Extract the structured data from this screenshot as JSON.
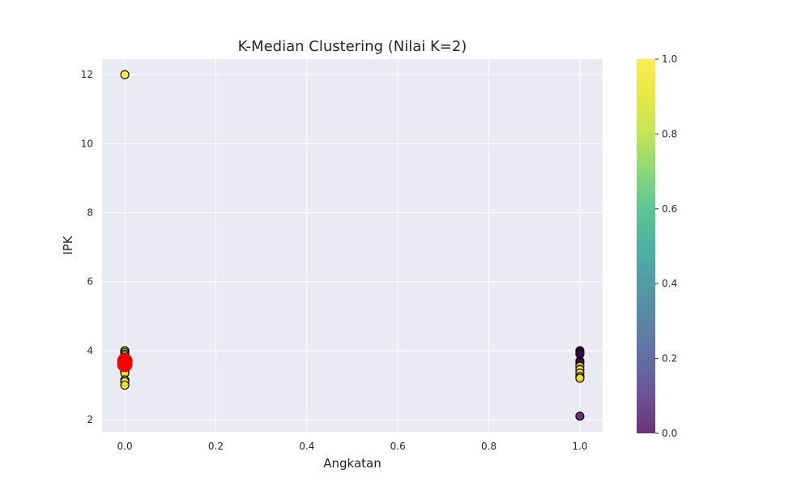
{
  "chart_data": {
    "type": "scatter",
    "title": "K-Median Clustering (Nilai K=2)",
    "xlabel": "Angkatan",
    "ylabel": "IPK",
    "xlim": [
      -0.05,
      1.05
    ],
    "ylim": [
      1.65,
      12.45
    ],
    "x_ticks": [
      "0.0",
      "0.2",
      "0.4",
      "0.6",
      "0.8",
      "1.0"
    ],
    "x_tick_values": [
      0,
      0.2,
      0.4,
      0.6,
      0.8,
      1.0
    ],
    "y_ticks": [
      "2",
      "4",
      "6",
      "8",
      "10",
      "12"
    ],
    "y_tick_values": [
      2,
      4,
      6,
      8,
      10,
      12
    ],
    "grid": true,
    "colormap": "viridis",
    "point_alpha": 0.8,
    "colorbar": {
      "ticks": [
        "0.0",
        "0.2",
        "0.4",
        "0.6",
        "0.8",
        "1.0"
      ],
      "tick_values": [
        0,
        0.2,
        0.4,
        0.6,
        0.8,
        1.0
      ],
      "range": [
        0,
        1
      ]
    },
    "points": [
      {
        "x": 0,
        "y": 12.0,
        "cluster": 1
      },
      {
        "x": 0,
        "y": 4.0,
        "cluster": 1
      },
      {
        "x": 0,
        "y": 3.95,
        "cluster": 1
      },
      {
        "x": 0,
        "y": 3.9,
        "cluster": 1
      },
      {
        "x": 0,
        "y": 3.85,
        "cluster": 1
      },
      {
        "x": 0,
        "y": 3.8,
        "cluster": 1
      },
      {
        "x": 0,
        "y": 3.75,
        "cluster": 1
      },
      {
        "x": 0,
        "y": 3.7,
        "cluster": 1
      },
      {
        "x": 0,
        "y": 3.65,
        "cluster": 1
      },
      {
        "x": 0,
        "y": 3.6,
        "cluster": 1
      },
      {
        "x": 0,
        "y": 3.55,
        "cluster": 1
      },
      {
        "x": 0,
        "y": 3.5,
        "cluster": 1
      },
      {
        "x": 0,
        "y": 3.4,
        "cluster": 1
      },
      {
        "x": 0,
        "y": 3.35,
        "cluster": 1
      },
      {
        "x": 0,
        "y": 3.15,
        "cluster": 1
      },
      {
        "x": 0,
        "y": 3.1,
        "cluster": 1
      },
      {
        "x": 0,
        "y": 3.0,
        "cluster": 1
      },
      {
        "x": 1,
        "y": 4.0,
        "cluster": 0
      },
      {
        "x": 1,
        "y": 3.95,
        "cluster": 0
      },
      {
        "x": 1,
        "y": 3.9,
        "cluster": 0
      },
      {
        "x": 1,
        "y": 3.7,
        "cluster": 0
      },
      {
        "x": 1,
        "y": 3.65,
        "cluster": 0
      },
      {
        "x": 1,
        "y": 2.1,
        "cluster": 0
      },
      {
        "x": 1,
        "y": 3.55,
        "cluster": 1
      },
      {
        "x": 1,
        "y": 3.45,
        "cluster": 1
      },
      {
        "x": 1,
        "y": 3.35,
        "cluster": 1
      },
      {
        "x": 1,
        "y": 3.25,
        "cluster": 1
      },
      {
        "x": 1,
        "y": 3.2,
        "cluster": 1
      }
    ],
    "centers": [
      {
        "x": 0,
        "y": 3.7
      },
      {
        "x": 0,
        "y": 3.6
      }
    ],
    "center_color": "#ff0000"
  }
}
